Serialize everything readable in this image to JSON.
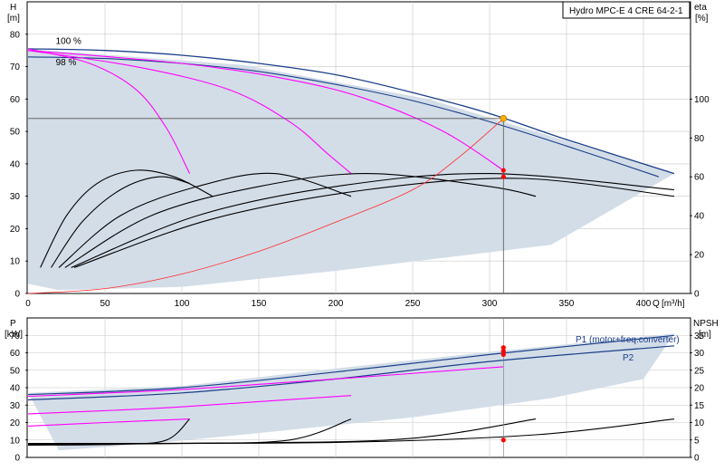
{
  "title": "Hydro MPC-E 4 CRE 64-2-1",
  "colors": {
    "area": "#d3dde8",
    "frame": "#000000",
    "grid": "#c8c8c8",
    "max_curve": "#1b3f8a",
    "partload_curve": "#ff00ff",
    "eta_curve": "#000000",
    "system_curve": "#ff2a2a",
    "duty_point": "#ffb000",
    "marker": "#ff0000",
    "legend_text": "#1b3f8a"
  },
  "chart_data": [
    {
      "id": "head",
      "type": "line",
      "left_axis": {
        "label": "H",
        "unit": "[m]",
        "ticks": [
          0,
          10,
          20,
          30,
          40,
          50,
          60,
          70,
          80
        ],
        "range": [
          0,
          90
        ]
      },
      "right_axis": {
        "label": "eta",
        "unit": "[%]",
        "ticks": [
          0,
          20,
          40,
          60,
          80,
          100
        ],
        "range": [
          0,
          150
        ]
      },
      "x_axis": {
        "label": "Q",
        "unit": "[m³/h]",
        "ticks": [
          0,
          50,
          100,
          150,
          200,
          250,
          300,
          350,
          400
        ],
        "range": [
          0,
          430
        ]
      },
      "annotations": [
        {
          "text": "100 %",
          "x": 18,
          "y": 77
        },
        {
          "text": "98 %",
          "x": 18,
          "y": 70.5
        }
      ],
      "operating_area": [
        [
          0,
          75.5
        ],
        [
          140,
          70.5
        ],
        [
          260,
          60
        ],
        [
          420,
          37
        ],
        [
          340,
          15
        ],
        [
          200,
          7
        ],
        [
          100,
          2
        ],
        [
          20,
          1
        ],
        [
          0,
          3
        ]
      ],
      "max_curve_100": [
        [
          0,
          75.5
        ],
        [
          50,
          75
        ],
        [
          100,
          73.5
        ],
        [
          150,
          71
        ],
        [
          200,
          67.5
        ],
        [
          250,
          62
        ],
        [
          300,
          55.5
        ],
        [
          350,
          47.5
        ],
        [
          420,
          37
        ]
      ],
      "max_curve_98": [
        [
          0,
          73
        ],
        [
          50,
          72.5
        ],
        [
          100,
          71
        ],
        [
          150,
          68.5
        ],
        [
          200,
          64.5
        ],
        [
          250,
          59.5
        ],
        [
          300,
          53
        ],
        [
          350,
          45.5
        ],
        [
          410,
          36
        ]
      ],
      "partload_curves": [
        [
          [
            0,
            75.5
          ],
          [
            40,
            71
          ],
          [
            70,
            63
          ],
          [
            90,
            51
          ],
          [
            105,
            37
          ]
        ],
        [
          [
            0,
            75
          ],
          [
            70,
            70
          ],
          [
            130,
            63
          ],
          [
            170,
            53
          ],
          [
            195,
            43
          ],
          [
            210,
            37
          ]
        ],
        [
          [
            0,
            75
          ],
          [
            100,
            71
          ],
          [
            170,
            66
          ],
          [
            220,
            60
          ],
          [
            270,
            50
          ],
          [
            309,
            38
          ]
        ]
      ],
      "eta_curves": [
        [
          [
            8,
            8
          ],
          [
            25,
            24
          ],
          [
            45,
            34
          ],
          [
            70,
            38
          ],
          [
            95,
            36
          ],
          [
            120,
            30
          ]
        ],
        [
          [
            15,
            8
          ],
          [
            35,
            22
          ],
          [
            60,
            32
          ],
          [
            85,
            36
          ],
          [
            105,
            34
          ]
        ],
        [
          [
            20,
            8
          ],
          [
            60,
            24
          ],
          [
            110,
            33
          ],
          [
            160,
            37
          ],
          [
            210,
            30
          ]
        ],
        [
          [
            24,
            8
          ],
          [
            80,
            24
          ],
          [
            150,
            33
          ],
          [
            220,
            37
          ],
          [
            300,
            33
          ],
          [
            330,
            30
          ]
        ],
        [
          [
            28,
            8
          ],
          [
            110,
            24
          ],
          [
            200,
            33
          ],
          [
            300,
            37
          ],
          [
            420,
            32
          ]
        ],
        [
          [
            30,
            8
          ],
          [
            120,
            23
          ],
          [
            220,
            32
          ],
          [
            320,
            35.5
          ],
          [
            420,
            30
          ]
        ]
      ],
      "system_curve": [
        [
          0,
          0
        ],
        [
          50,
          1.5
        ],
        [
          100,
          6
        ],
        [
          150,
          13
        ],
        [
          200,
          22
        ],
        [
          250,
          32
        ],
        [
          280,
          42
        ],
        [
          309,
          54
        ]
      ],
      "duty_point": {
        "q": 309,
        "h": 54
      },
      "marker_points": [
        {
          "q": 309,
          "h": 38
        },
        {
          "q": 309,
          "h": 36
        }
      ]
    },
    {
      "id": "power",
      "type": "line",
      "left_axis": {
        "label": "P",
        "unit": "[kW]",
        "ticks": [
          0,
          10,
          20,
          30,
          40,
          50,
          60,
          70
        ],
        "range": [
          0,
          80
        ]
      },
      "right_axis": {
        "label": "NPSH",
        "unit": "[m]",
        "ticks": [
          0,
          5,
          10,
          15,
          20,
          25,
          30,
          35
        ],
        "range": [
          0,
          40
        ]
      },
      "x_axis": {
        "range": [
          0,
          430
        ]
      },
      "series": [
        {
          "name": "P1 (motor+freq.converter)",
          "values": [
            [
              0,
              36
            ],
            [
              100,
              40
            ],
            [
              200,
              49
            ],
            [
              300,
              59
            ],
            [
              420,
              70
            ]
          ]
        },
        {
          "name": "P2",
          "values": [
            [
              0,
              33
            ],
            [
              100,
              37
            ],
            [
              200,
              45
            ],
            [
              300,
              55
            ],
            [
              420,
              64
            ]
          ]
        }
      ],
      "operating_area": [
        [
          0,
          37
        ],
        [
          100,
          41
        ],
        [
          200,
          51
        ],
        [
          300,
          60.5
        ],
        [
          420,
          71
        ],
        [
          400,
          45
        ],
        [
          340,
          34
        ],
        [
          250,
          23
        ],
        [
          150,
          14
        ],
        [
          80,
          8
        ],
        [
          20,
          4
        ]
      ],
      "partload_curves": [
        [
          [
            0,
            18
          ],
          [
            50,
            20
          ],
          [
            105,
            22
          ]
        ],
        [
          [
            0,
            25
          ],
          [
            80,
            28
          ],
          [
            150,
            32
          ],
          [
            210,
            35.5
          ]
        ],
        [
          [
            0,
            35
          ],
          [
            100,
            39
          ],
          [
            200,
            45
          ],
          [
            309,
            52
          ]
        ]
      ],
      "npsh_curves": [
        [
          [
            0,
            3.5
          ],
          [
            60,
            3.8
          ],
          [
            90,
            5
          ],
          [
            105,
            11
          ]
        ],
        [
          [
            0,
            3.8
          ],
          [
            100,
            4
          ],
          [
            170,
            5
          ],
          [
            210,
            11
          ]
        ],
        [
          [
            0,
            4
          ],
          [
            150,
            4.2
          ],
          [
            250,
            5.5
          ],
          [
            330,
            11
          ]
        ],
        [
          [
            0,
            4
          ],
          [
            200,
            4.3
          ],
          [
            330,
            6.5
          ],
          [
            420,
            11
          ]
        ]
      ],
      "marker_points": [
        {
          "q": 309,
          "p": 63
        },
        {
          "q": 309,
          "p": 61
        },
        {
          "q": 309,
          "p": 59
        }
      ],
      "npsh_marker": {
        "q": 309,
        "npsh": 5
      }
    }
  ]
}
